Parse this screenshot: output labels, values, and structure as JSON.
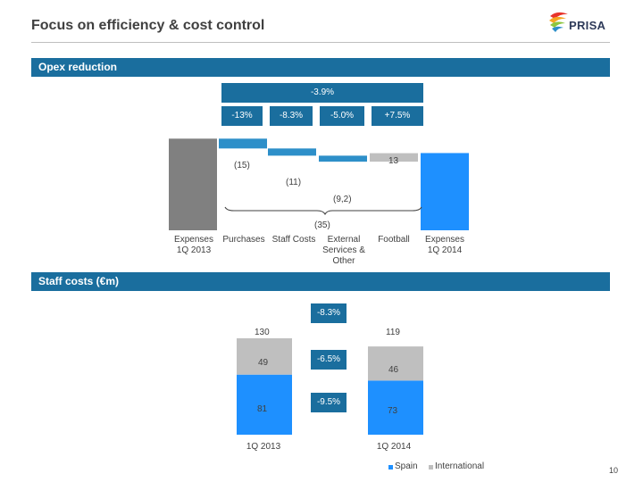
{
  "page": {
    "title": "Focus on efficiency & cost control",
    "logo_text": "PRISA",
    "page_number": "10"
  },
  "sections": {
    "opex": "Opex reduction",
    "staff": "Staff costs (€m)"
  },
  "colors": {
    "brand_blue": "#1a6e9e",
    "waterfall_blue": "#2d8fc9",
    "bright_blue": "#1e90ff",
    "grey": "#808080",
    "light_grey": "#bfbfbf"
  },
  "chart_data": [
    {
      "type": "bar",
      "subtype": "waterfall",
      "title": "Opex reduction",
      "total_change_label": "-3.9%",
      "categories": [
        "Expenses 1Q 2013",
        "Purchases",
        "Staff Costs",
        "External Services & Other",
        "Football",
        "Expenses 1Q 2014"
      ],
      "display_categories": [
        [
          "Expenses",
          "1Q 2013"
        ],
        [
          "Purchases"
        ],
        [
          "Staff Costs"
        ],
        [
          "External",
          "Services &",
          "Other"
        ],
        [
          "Football"
        ],
        [
          "Expenses",
          "1Q 2014"
        ]
      ],
      "steps": [
        {
          "category": "Purchases",
          "value": -15,
          "label": "(15)",
          "pct": "-13%"
        },
        {
          "category": "Staff Costs",
          "value": -11,
          "label": "(11)",
          "pct": "-8.3%"
        },
        {
          "category": "External Services & Other",
          "value": -9.2,
          "label": "(9,2)",
          "pct": "-5.0%"
        },
        {
          "category": "Football",
          "value": 13,
          "label": "13",
          "pct": "+7.5%"
        }
      ],
      "net_change_label": "(35)",
      "start_value": 560,
      "end_value": 538,
      "ylim": [
        420,
        570
      ]
    },
    {
      "type": "bar",
      "subtype": "stacked",
      "title": "Staff costs (€m)",
      "categories": [
        "1Q 2013",
        "1Q 2014"
      ],
      "series": [
        {
          "name": "Spain",
          "values": [
            81,
            73
          ],
          "change_label": "-9.5%"
        },
        {
          "name": "International",
          "values": [
            49,
            46
          ],
          "change_label": "-6.5%"
        }
      ],
      "totals": [
        130,
        119
      ],
      "total_change_label": "-8.3%",
      "ylim": [
        0,
        140
      ],
      "legend": [
        "Spain",
        "International"
      ]
    }
  ]
}
